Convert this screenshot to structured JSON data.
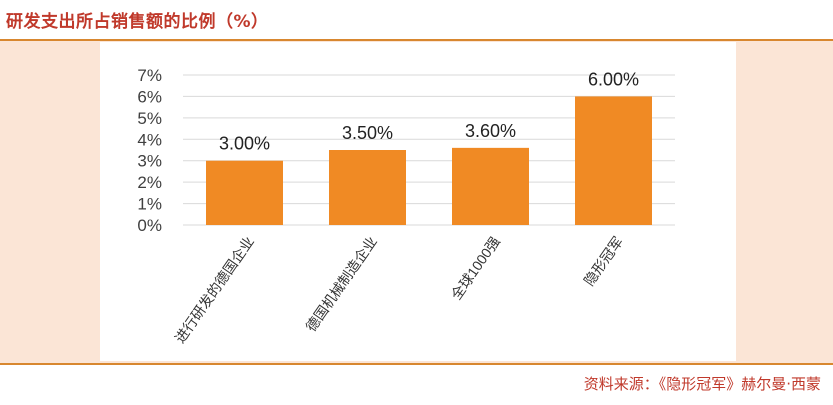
{
  "title": "研发支出所占销售额的比例（%）",
  "source": "资料来源：《隐形冠军》赫尔曼·西蒙",
  "colors": {
    "bar": "#f08a24",
    "accent": "#c0392b",
    "rule": "#d8872f",
    "panel": "#fbe5d6"
  },
  "chart_data": {
    "type": "bar",
    "title": "",
    "xlabel": "",
    "ylabel": "",
    "categories": [
      "进行研发的德国企业",
      "德国机械制造企业",
      "全球1000强",
      "隐形冠军"
    ],
    "values": [
      3.0,
      3.5,
      3.6,
      6.0
    ],
    "value_labels": [
      "3.00%",
      "3.50%",
      "3.60%",
      "6.00%"
    ],
    "ylim": [
      0,
      7
    ],
    "yticks": [
      "0%",
      "1%",
      "2%",
      "3%",
      "4%",
      "5%",
      "6%",
      "7%"
    ],
    "grid": true,
    "legend": "none"
  }
}
